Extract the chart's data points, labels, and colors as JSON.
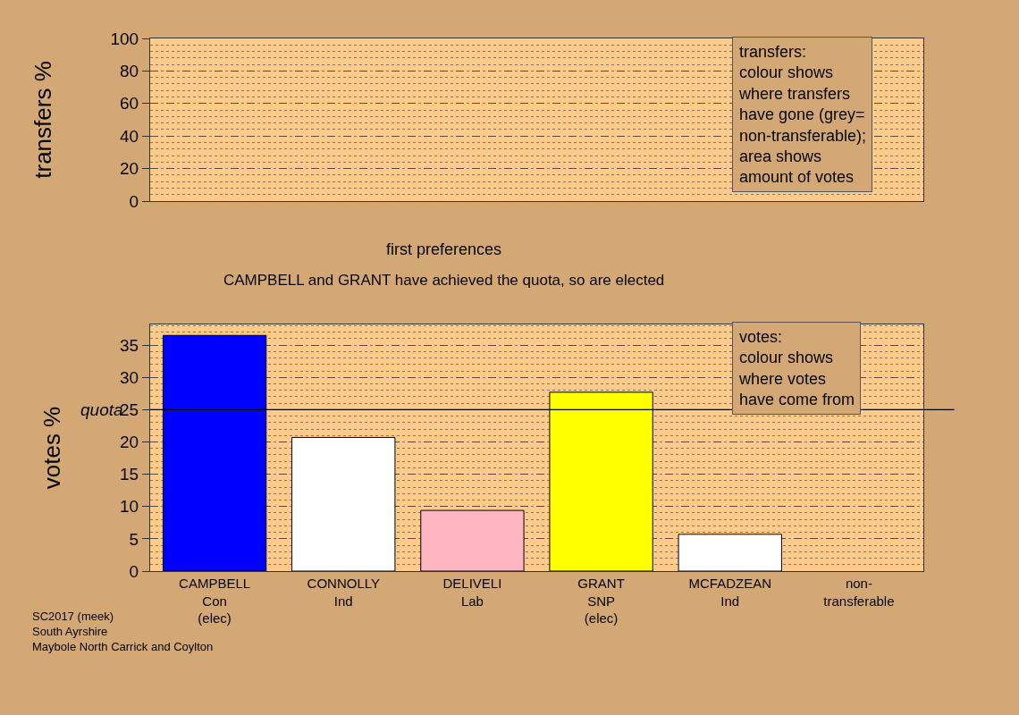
{
  "chart_data": [
    {
      "type": "bar",
      "ylabel": "transfers %",
      "categories": [
        null,
        null,
        null,
        null,
        null,
        null
      ],
      "values": [
        null,
        null,
        null,
        null,
        null,
        null
      ],
      "ylim": [
        0,
        100
      ],
      "yticks": [
        0,
        20,
        40,
        60,
        80,
        100
      ],
      "grid": "y",
      "tick_labels": "y",
      "annotations": [
        "transfers:\ncolour shows\nwhere transfers\nhave gone (grey=\nnon-transferable);\narea shows\namount of votes"
      ]
    },
    {
      "type": "bar",
      "title": "first preferences",
      "subtitle": "CAMPBELL and GRANT have achieved the quota, so are elected",
      "ylabel": "votes %",
      "categories": [
        "CAMPBELL\nCon\n(elec)",
        "CONNOLLY\nInd",
        "DELIVELI\nLab",
        "GRANT\nSNP\n(elec)",
        "MCFADZEAN\nInd",
        "non-\ntransferable"
      ],
      "values": [
        36.5,
        20.7,
        9.4,
        27.7,
        5.7,
        null
      ],
      "colors": [
        "#0000ff",
        "#ffffff",
        "#ffb6c1",
        "#ffff00",
        "#ffffff",
        "#bebebe"
      ],
      "ylim": [
        0,
        38.2
      ],
      "yticks": [
        0,
        5,
        10,
        15,
        20,
        25,
        30,
        35
      ],
      "grid": "y",
      "ref_lines": [
        {
          "axis": "y",
          "value": 25,
          "label": "quota"
        }
      ],
      "annotations": [
        "votes:\ncolour shows\nwhere votes\nhave come from",
        "SC2017 (meek)\nSouth Ayrshire\nMaybole North Carrick and Coylton"
      ]
    }
  ]
}
